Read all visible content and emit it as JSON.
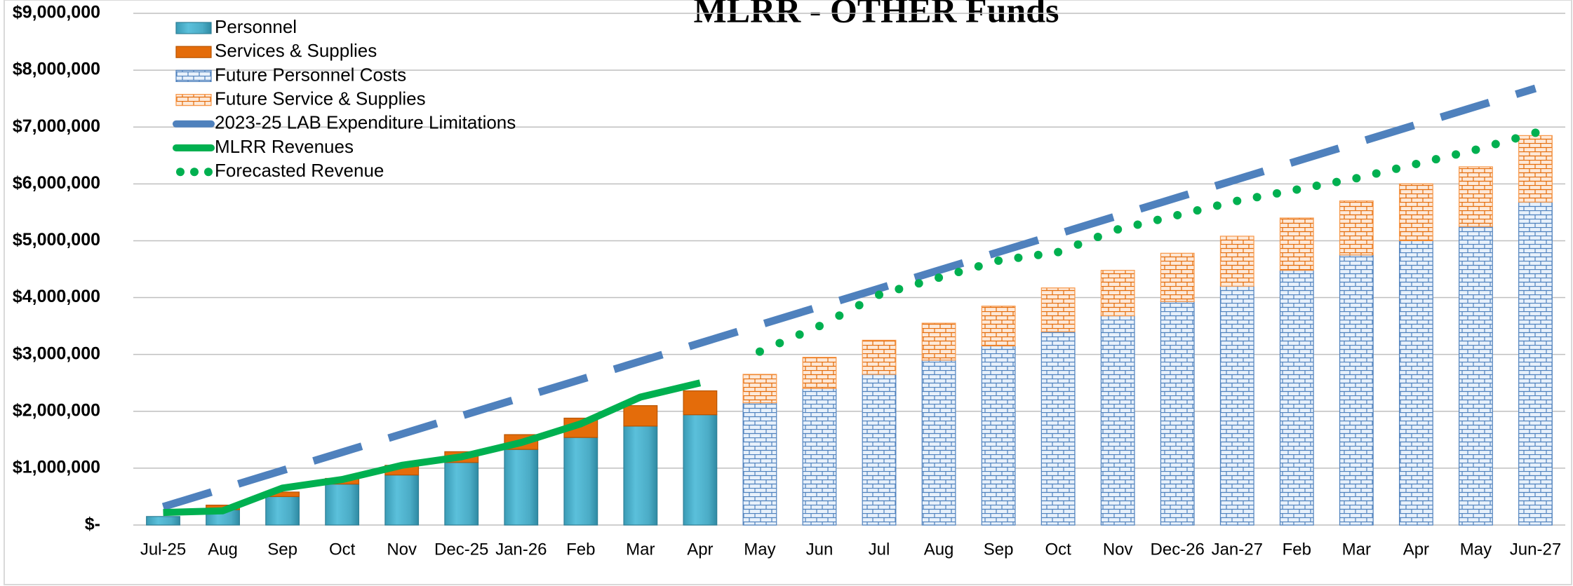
{
  "chart_data": {
    "type": "bar",
    "title": "MLRR - OTHER Funds",
    "categories": [
      "Jul-25",
      "Aug",
      "Sep",
      "Oct",
      "Nov",
      "Dec-25",
      "Jan-26",
      "Feb",
      "Mar",
      "Apr",
      "May",
      "Jun",
      "Jul",
      "Aug",
      "Sep",
      "Oct",
      "Nov",
      "Dec-26",
      "Jan-27",
      "Feb",
      "Mar",
      "Apr",
      "May",
      "Jun-27"
    ],
    "ylim": [
      0,
      9000000
    ],
    "yticks": [
      {
        "value": 0,
        "label": "$-"
      },
      {
        "value": 1000000,
        "label": "$1,000,000"
      },
      {
        "value": 2000000,
        "label": "$2,000,000"
      },
      {
        "value": 3000000,
        "label": "$3,000,000"
      },
      {
        "value": 4000000,
        "label": "$4,000,000"
      },
      {
        "value": 5000000,
        "label": "$5,000,000"
      },
      {
        "value": 6000000,
        "label": "$6,000,000"
      },
      {
        "value": 7000000,
        "label": "$7,000,000"
      },
      {
        "value": 8000000,
        "label": "$8,000,000"
      },
      {
        "value": 9000000,
        "label": "$9,000,000"
      }
    ],
    "grid": true,
    "stacked": true,
    "legend": "top-left",
    "series": [
      {
        "name": "Personnel",
        "kind": "bar",
        "fill": "gradient",
        "color": "#4bacc6",
        "values": [
          150000,
          270000,
          500000,
          720000,
          880000,
          1100000,
          1330000,
          1540000,
          1740000,
          1940000,
          null,
          null,
          null,
          null,
          null,
          null,
          null,
          null,
          null,
          null,
          null,
          null,
          null,
          null
        ]
      },
      {
        "name": "Services & Supplies",
        "kind": "bar",
        "fill": "solid",
        "color": "#e46c0a",
        "values": [
          0,
          80000,
          80000,
          100000,
          170000,
          190000,
          260000,
          340000,
          360000,
          420000,
          null,
          null,
          null,
          null,
          null,
          null,
          null,
          null,
          null,
          null,
          null,
          null,
          null,
          null
        ]
      },
      {
        "name": "Future Personnel Costs",
        "kind": "bar",
        "fill": "brick",
        "color": "#4f81bd",
        "values": [
          null,
          null,
          null,
          null,
          null,
          null,
          null,
          null,
          null,
          null,
          2150000,
          2400000,
          2650000,
          2900000,
          3150000,
          3400000,
          3680000,
          3930000,
          4200000,
          4480000,
          4750000,
          5000000,
          5250000,
          5680000
        ]
      },
      {
        "name": "Future Service & Supplies",
        "kind": "bar",
        "fill": "brick",
        "color": "#f79646",
        "values": [
          null,
          null,
          null,
          null,
          null,
          null,
          null,
          null,
          null,
          null,
          500000,
          550000,
          600000,
          650000,
          700000,
          770000,
          800000,
          850000,
          880000,
          920000,
          950000,
          1000000,
          1050000,
          1170000
        ]
      },
      {
        "name": "2023-25 LAB Expenditure Limitations",
        "kind": "line",
        "style": "dashed",
        "color": "#4f81bd",
        "values": [
          320000,
          640000,
          960000,
          1280000,
          1600000,
          1920000,
          2240000,
          2560000,
          2880000,
          3200000,
          3520000,
          3840000,
          4160000,
          4480000,
          4800000,
          5120000,
          5440000,
          5760000,
          6080000,
          6400000,
          6720000,
          7040000,
          7360000,
          7680000
        ]
      },
      {
        "name": "MLRR Revenues",
        "kind": "line",
        "style": "solid",
        "color": "#00b050",
        "values": [
          220000,
          250000,
          650000,
          800000,
          1050000,
          1200000,
          1450000,
          1780000,
          2250000,
          2500000,
          null,
          null,
          null,
          null,
          null,
          null,
          null,
          null,
          null,
          null,
          null,
          null,
          null,
          null
        ]
      },
      {
        "name": "Forecasted Revenue",
        "kind": "line",
        "style": "dotted",
        "color": "#00b050",
        "values": [
          null,
          null,
          null,
          null,
          null,
          null,
          null,
          null,
          null,
          null,
          3050000,
          3500000,
          4050000,
          4350000,
          4650000,
          4800000,
          5200000,
          5450000,
          5700000,
          5900000,
          6100000,
          6350000,
          6600000,
          6900000
        ]
      }
    ]
  }
}
